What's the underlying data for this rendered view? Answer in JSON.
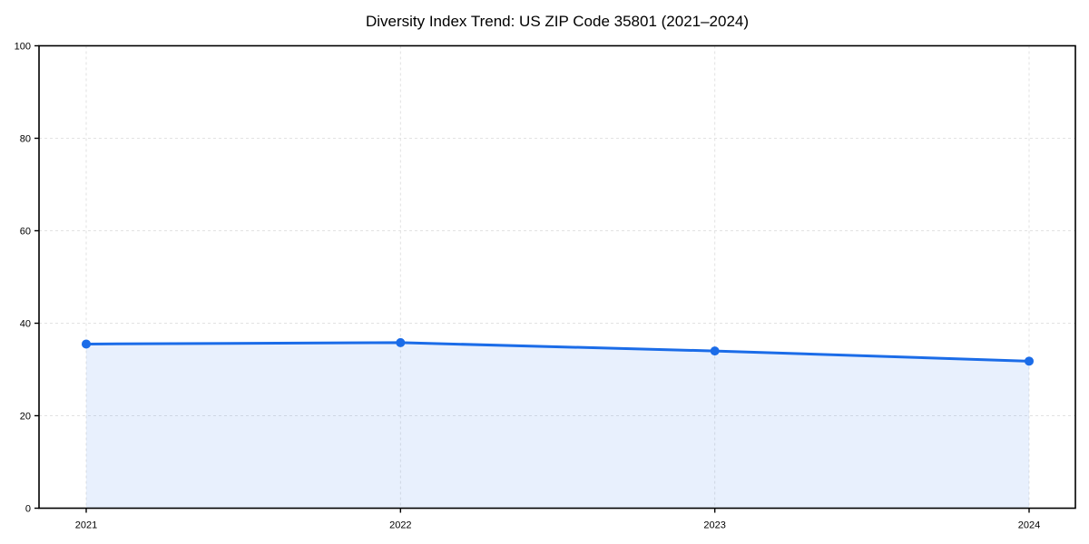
{
  "chart_data": {
    "type": "area",
    "title": "Diversity Index Trend: US ZIP Code 35801 (2021–2024)",
    "xlabel": "",
    "ylabel": "",
    "categories": [
      "2021",
      "2022",
      "2023",
      "2024"
    ],
    "series": [
      {
        "name": "Diversity Index",
        "values": [
          35.5,
          35.8,
          34.0,
          31.8
        ]
      }
    ],
    "ylim": [
      0,
      100
    ],
    "yticks": [
      0,
      20,
      40,
      60,
      80,
      100
    ],
    "grid": "dashed, light gray, horizontal at yticks and vertical at each year",
    "legend": "none",
    "colors": {
      "line": "#1b6ce8",
      "marker": "#1b6ce8",
      "fill": "rgba(27,108,232,0.10)",
      "grid": "#e2e2e2",
      "axis": "#000000",
      "text": "#000000",
      "background": "#ffffff"
    }
  }
}
